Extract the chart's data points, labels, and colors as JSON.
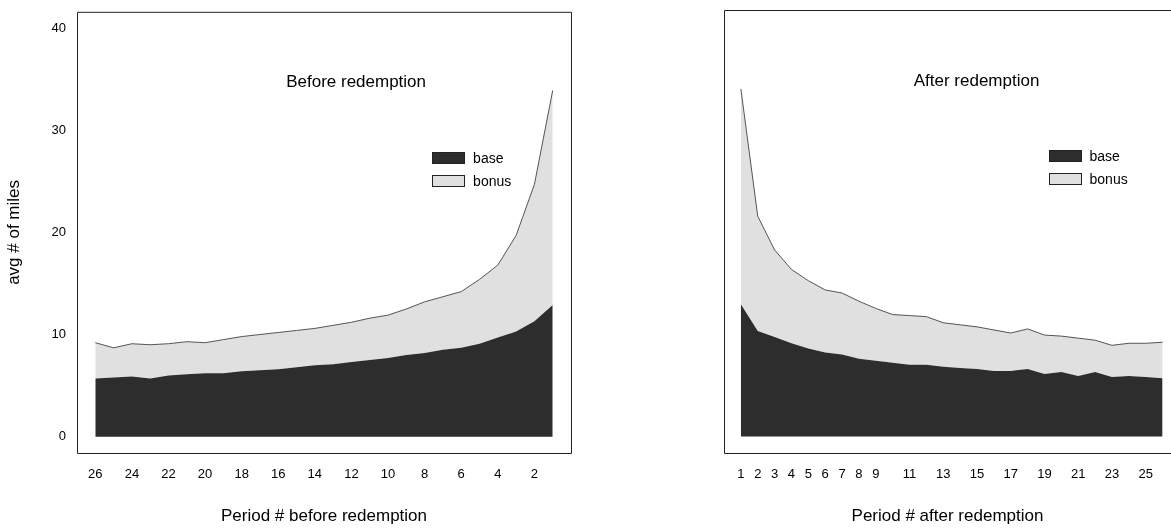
{
  "chart_data": [
    {
      "type": "area",
      "stacked": true,
      "title": "Before redemption",
      "xlabel": "Period # before redemption",
      "ylabel": "avg # of miles",
      "legend": "top right",
      "grid": false,
      "x": [
        26,
        25,
        24,
        23,
        22,
        21,
        20,
        19,
        18,
        17,
        16,
        15,
        14,
        13,
        12,
        11,
        10,
        9,
        8,
        7,
        6,
        5,
        4,
        3,
        2,
        1
      ],
      "xlim": [
        27,
        0
      ],
      "xticks": [
        26,
        24,
        22,
        20,
        18,
        16,
        14,
        12,
        10,
        8,
        6,
        4,
        2
      ],
      "ylim": [
        -1.6,
        41.6
      ],
      "yticks": [
        0,
        10,
        20,
        30,
        40
      ],
      "series": [
        {
          "name": "base",
          "color": "#2d2d2d",
          "values": [
            5.7,
            5.8,
            5.9,
            5.7,
            6.0,
            6.1,
            6.2,
            6.2,
            6.4,
            6.5,
            6.6,
            6.8,
            7.0,
            7.1,
            7.3,
            7.5,
            7.7,
            8.0,
            8.2,
            8.5,
            8.7,
            9.1,
            9.7,
            10.3,
            11.3,
            12.9
          ]
        },
        {
          "name": "bonus",
          "color": "#e0e0e0",
          "values": [
            3.5,
            2.9,
            3.2,
            3.3,
            3.1,
            3.2,
            3.0,
            3.3,
            3.4,
            3.5,
            3.6,
            3.6,
            3.6,
            3.8,
            3.9,
            4.1,
            4.2,
            4.5,
            5.0,
            5.2,
            5.5,
            6.3,
            7.1,
            9.4,
            13.4,
            21.0
          ]
        }
      ]
    },
    {
      "type": "area",
      "stacked": true,
      "title": "After redemption",
      "xlabel": "Period # after redemption",
      "legend": "top right",
      "grid": false,
      "tick_labels": "x",
      "x": [
        1,
        2,
        3,
        4,
        5,
        6,
        7,
        8,
        9,
        10,
        11,
        12,
        13,
        14,
        15,
        16,
        17,
        18,
        19,
        20,
        21,
        22,
        23,
        24,
        25,
        26
      ],
      "xlim": [
        0,
        26.5
      ],
      "xticks": [
        1,
        2,
        3,
        4,
        5,
        6,
        7,
        8,
        9,
        11,
        13,
        15,
        17,
        19,
        21,
        23,
        25
      ],
      "ylim": [
        -1.6,
        41.6
      ],
      "series": [
        {
          "name": "base",
          "color": "#2d2d2d",
          "values": [
            12.9,
            10.3,
            9.7,
            9.1,
            8.6,
            8.2,
            8.0,
            7.6,
            7.4,
            7.2,
            7.0,
            7.0,
            6.8,
            6.7,
            6.6,
            6.4,
            6.4,
            6.6,
            6.1,
            6.3,
            5.9,
            6.3,
            5.8,
            5.9,
            5.8,
            5.7
          ]
        },
        {
          "name": "bonus",
          "color": "#e0e0e0",
          "values": [
            21.0,
            11.2,
            8.5,
            7.2,
            6.6,
            6.1,
            6.0,
            5.6,
            5.1,
            4.7,
            4.8,
            4.7,
            4.3,
            4.2,
            4.1,
            4.0,
            3.7,
            3.9,
            3.8,
            3.5,
            3.7,
            3.1,
            3.1,
            3.2,
            3.3,
            3.5
          ]
        }
      ]
    }
  ]
}
